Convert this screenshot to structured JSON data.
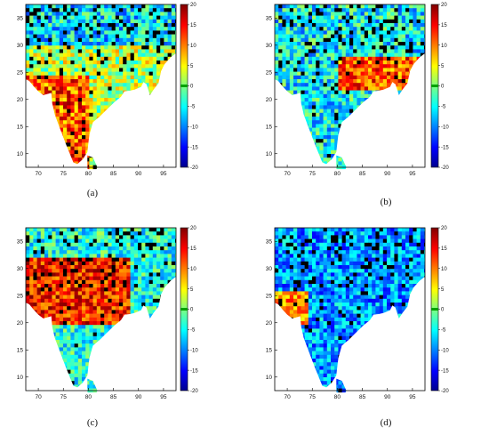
{
  "panels": [
    {
      "caption": "(a)"
    },
    {
      "caption": "(b)"
    },
    {
      "caption": "(c)"
    },
    {
      "caption": "(d)"
    }
  ],
  "map_axes": {
    "x_ticks": [
      "70",
      "75",
      "80",
      "85",
      "90",
      "95"
    ],
    "y_ticks": [
      "35",
      "30",
      "25",
      "20",
      "15",
      "10"
    ]
  },
  "colorbar": {
    "ticks": [
      "20",
      "15",
      "10",
      "5",
      "0",
      "-5",
      "-10",
      "-15",
      "-20"
    ],
    "colormap": "jet",
    "zero_band_color": "#00a000",
    "min": -20,
    "max": 20
  }
}
